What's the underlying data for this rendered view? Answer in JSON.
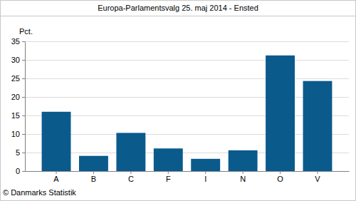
{
  "chart_data": {
    "type": "bar",
    "title": "Europa-Parlamentsvalg 25. maj 2014 - Ensted",
    "ylabel": "Pct.",
    "source": "© Danmarks Statistik",
    "categories": [
      "A",
      "B",
      "C",
      "F",
      "I",
      "N",
      "O",
      "V"
    ],
    "values": [
      16.0,
      4.1,
      10.3,
      6.1,
      3.3,
      5.6,
      31.2,
      24.3
    ],
    "color": "#0b5a8c",
    "ylim": [
      0,
      35
    ],
    "yticks": [
      0,
      5,
      10,
      15,
      20,
      25,
      30,
      35
    ],
    "grid": true
  }
}
